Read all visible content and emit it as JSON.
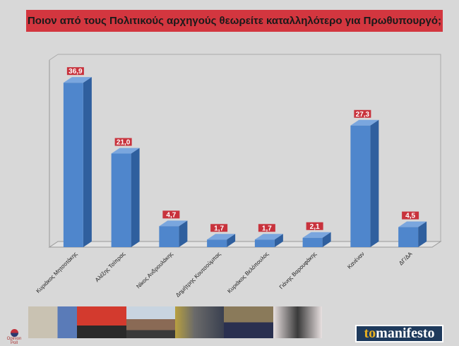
{
  "chart_data": {
    "type": "bar",
    "title": "Ποιον από τους Πολιτικούς αρχηγούς θεωρείτε καταλληλότερο για Πρωθυπουργό;",
    "categories": [
      "Κυριάκος Μητσοτάκης",
      "Αλέξης Τσίπρας",
      "Νίκος Ανδρουλάκης",
      "Δημήτρης Κουτσούμπας",
      "Κυριάκος Βελόπουλος",
      "Γιάνης Βαρουφάκης",
      "Κανέναν",
      "ΔΓ/ΔΑ"
    ],
    "values": [
      36.9,
      21.0,
      4.7,
      1.7,
      1.7,
      2.1,
      27.3,
      4.5
    ],
    "value_labels": [
      "36,9",
      "21,0",
      "4,7",
      "1,7",
      "1,7",
      "2,1",
      "27,3",
      "4,5"
    ],
    "ylim": [
      0,
      42
    ],
    "xlabel": "",
    "ylabel": "",
    "grid": false,
    "legend": "none",
    "colors": {
      "bar": "#4f86cc",
      "bar_side": "#2f5f9e",
      "bar_top": "#7aa6de",
      "label_bg": "#c8323c",
      "title_bg": "#d3363f"
    }
  },
  "footer": {
    "pollster": "Opinion Poll",
    "logo_prefix": "to",
    "logo": "manifesto"
  }
}
